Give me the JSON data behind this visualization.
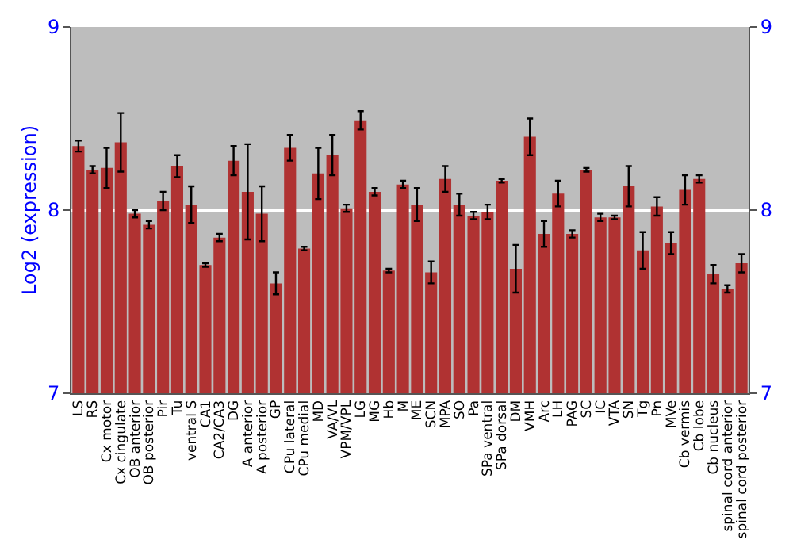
{
  "chart_data": {
    "type": "bar",
    "ylabel": "Log2 (expression)",
    "categories": [
      "LS",
      "RS",
      "Cx motor",
      "Cx cingulate",
      "OB anterior",
      "OB posterior",
      "Pir",
      "Tu",
      "ventral S",
      "CA1",
      "CA2/CA3",
      "DG",
      "A anterior",
      "A posterior",
      "GP",
      "CPu lateral",
      "CPu medial",
      "MD",
      "VA/VL",
      "VPM/VPL",
      "LG",
      "MG",
      "Hb",
      "M",
      "ME",
      "SCN",
      "MPA",
      "SO",
      "Pa",
      "SPa ventral",
      "SPa dorsal",
      "DM",
      "VMH",
      "Arc",
      "LH",
      "PAG",
      "SC",
      "IC",
      "VTA",
      "SN",
      "Tg",
      "Pn",
      "MVe",
      "Cb vermis",
      "Cb lobe",
      "Cb nucleus",
      "spinal cord anterior",
      "spinal cord posterior"
    ],
    "values": [
      8.35,
      8.22,
      8.23,
      8.37,
      7.98,
      7.92,
      8.05,
      8.24,
      8.03,
      7.7,
      7.85,
      8.27,
      8.1,
      7.98,
      7.6,
      8.34,
      7.79,
      8.2,
      8.3,
      8.01,
      8.49,
      8.1,
      7.67,
      8.14,
      8.03,
      7.66,
      8.17,
      8.03,
      7.97,
      7.99,
      8.16,
      7.68,
      8.4,
      7.87,
      8.09,
      7.87,
      8.22,
      7.96,
      7.96,
      8.13,
      7.78,
      8.02,
      7.82,
      8.11,
      8.17,
      7.65,
      7.57,
      7.71
    ],
    "errors": [
      0.03,
      0.02,
      0.11,
      0.16,
      0.02,
      0.02,
      0.05,
      0.06,
      0.1,
      0.01,
      0.02,
      0.08,
      0.26,
      0.15,
      0.06,
      0.07,
      0.01,
      0.14,
      0.11,
      0.02,
      0.05,
      0.02,
      0.01,
      0.02,
      0.09,
      0.06,
      0.07,
      0.06,
      0.02,
      0.04,
      0.01,
      0.13,
      0.1,
      0.07,
      0.07,
      0.02,
      0.01,
      0.02,
      0.01,
      0.11,
      0.1,
      0.05,
      0.06,
      0.08,
      0.02,
      0.05,
      0.02,
      0.05
    ],
    "color": "#b03232",
    "ylim": [
      7,
      9
    ],
    "yticks": [
      7,
      8,
      9
    ],
    "y2lim": [
      7,
      9
    ],
    "y2ticks": [
      7,
      8,
      9
    ],
    "grid": "y"
  }
}
